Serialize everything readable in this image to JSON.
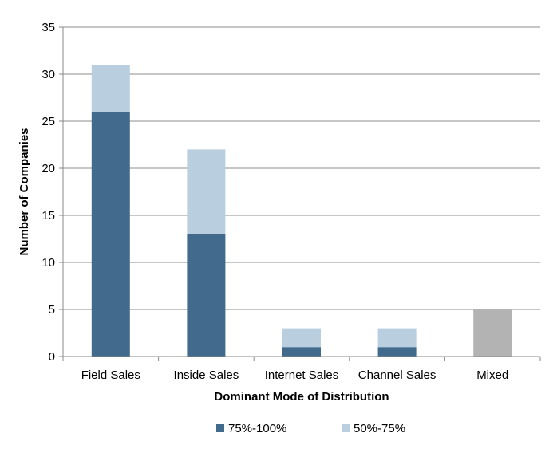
{
  "chart_data": {
    "type": "bar",
    "stacked": true,
    "categories": [
      "Field Sales",
      "Inside Sales",
      "Internet Sales",
      "Channel Sales",
      "Mixed"
    ],
    "series": [
      {
        "name": "75%-100%",
        "values": [
          26,
          13,
          1,
          1,
          0
        ],
        "color": "#416a8c"
      },
      {
        "name": "50%-75%",
        "values": [
          5,
          9,
          2,
          2,
          0
        ],
        "color": "#b9cfe0"
      },
      {
        "name": "",
        "values": [
          0,
          0,
          0,
          0,
          5
        ],
        "color": "#b3b3b3"
      }
    ],
    "title": "",
    "xlabel": "Dominant Mode of Distribution",
    "ylabel": "Number of Companies",
    "ylim": [
      0,
      35
    ],
    "yticks": [
      0,
      5,
      10,
      15,
      20,
      25,
      30,
      35
    ],
    "grid": true,
    "legend_position": "bottom"
  }
}
